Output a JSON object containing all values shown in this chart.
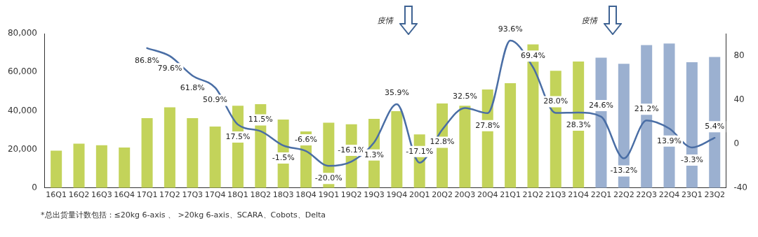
{
  "chart_data": {
    "type": "bar",
    "categories": [
      "16Q1",
      "16Q2",
      "16Q3",
      "16Q4",
      "17Q1",
      "17Q2",
      "17Q3",
      "17Q4",
      "18Q1",
      "18Q2",
      "18Q3",
      "18Q4",
      "19Q1",
      "19Q2",
      "19Q3",
      "19Q4",
      "20Q1",
      "20Q2",
      "20Q3",
      "20Q4",
      "21Q1",
      "21Q2",
      "21Q3",
      "21Q4",
      "22Q1",
      "22Q2",
      "22Q3",
      "22Q4",
      "23Q1",
      "23Q2"
    ],
    "series": [
      {
        "colors": [
          "#c3d35a",
          "#c3d35a",
          "#c3d35a",
          "#c3d35a",
          "#c3d35a",
          "#c3d35a",
          "#c3d35a",
          "#c3d35a",
          "#c3d35a",
          "#c3d35a",
          "#c3d35a",
          "#c3d35a",
          "#c3d35a",
          "#c3d35a",
          "#c3d35a",
          "#c3d35a",
          "#c3d35a",
          "#c3d35a",
          "#c3d35a",
          "#c3d35a",
          "#c3d35a",
          "#c3d35a",
          "#c3d35a",
          "#c3d35a",
          "#9bb0d0",
          "#9bb0d0",
          "#9bb0d0",
          "#9bb0d0",
          "#9bb0d0",
          "#9bb0d0"
        ],
        "values": [
          19300,
          22900,
          22100,
          20900,
          36200,
          41800,
          36200,
          31800,
          42600,
          43400,
          35400,
          29300,
          33800,
          33000,
          35800,
          39800,
          27700,
          43800,
          42600,
          51000,
          54300,
          74400,
          60700,
          65500,
          67500,
          64300,
          74000,
          74800,
          65100,
          67900
        ]
      },
      {
        "type": "line",
        "axis": "y2",
        "color": "#4a6ea5",
        "values": [
          null,
          null,
          null,
          null,
          86.8,
          79.6,
          61.8,
          50.9,
          17.5,
          11.5,
          -1.5,
          -6.6,
          -20.0,
          -16.1,
          1.3,
          35.9,
          -17.1,
          12.8,
          32.5,
          27.8,
          93.6,
          69.4,
          28.0,
          28.3,
          24.6,
          -13.2,
          21.2,
          13.9,
          -3.3,
          5.4
        ],
        "value_labels": [
          null,
          null,
          null,
          null,
          "86.8%",
          "79.6%",
          "61.8%",
          "50.9%",
          "17.5%",
          "11.5%",
          "-1.5%",
          "-6.6%",
          "-20.0%",
          "-16.1%",
          "1.3%",
          "35.9%",
          "-17.1%",
          "12.8%",
          "32.5%",
          "27.8%",
          "93.6%",
          "69.4%",
          "28.0%",
          "28.3%",
          "24.6%",
          "-13.2%",
          "21.2%",
          "13.9%",
          "-3.3%",
          "5.4%"
        ]
      }
    ],
    "ylim": [
      0,
      80000
    ],
    "yticks": [
      {
        "value": 0,
        "label": "0"
      },
      {
        "value": 20000,
        "label": "20,000"
      },
      {
        "value": 40000,
        "label": "40,000"
      },
      {
        "value": 60000,
        "label": "60,000"
      },
      {
        "value": 80000,
        "label": "80,000"
      }
    ],
    "y2lim": [
      -40,
      100
    ],
    "y2ticks": [
      -40,
      0,
      40,
      80
    ],
    "grid": false,
    "legend": false,
    "marker": "none",
    "line_style": "solid",
    "annotations": [
      "疫情",
      "疫情",
      "*总出货量计数包括：≤20kg 6-axis 、 >20kg 6-axis、SCARA、Cobots、Delta"
    ]
  }
}
